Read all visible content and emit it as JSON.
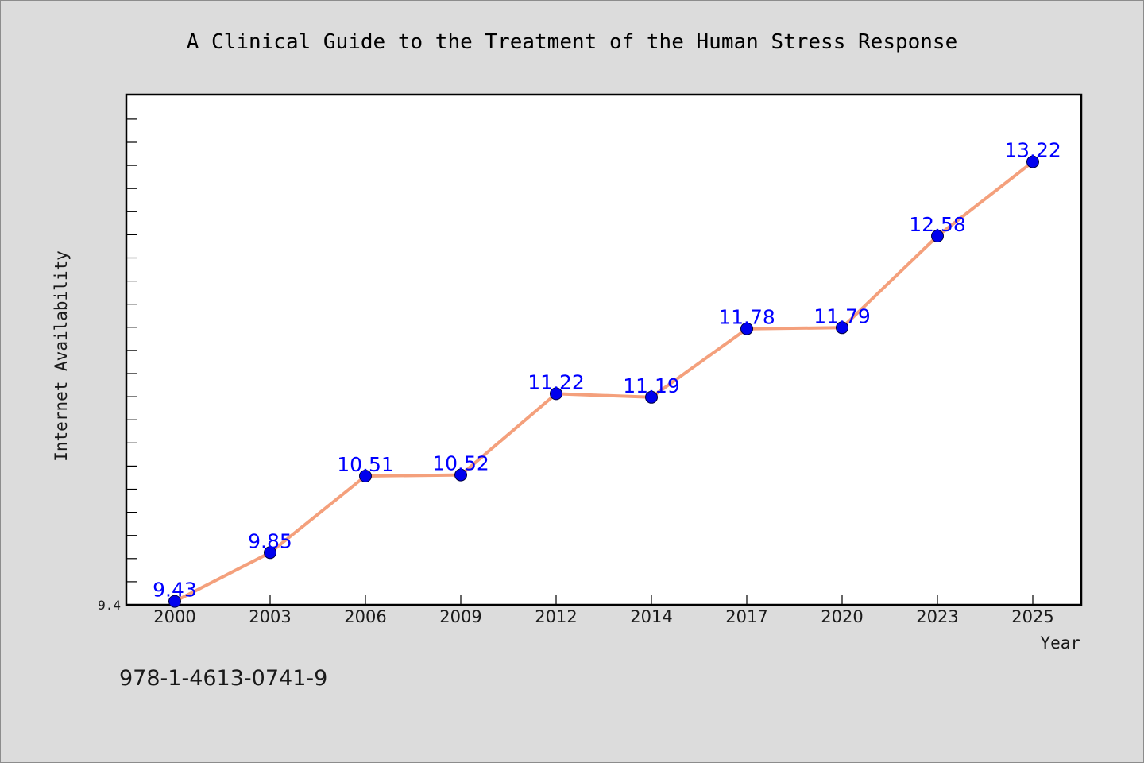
{
  "chart_data": {
    "type": "line",
    "title": "A Clinical Guide to the Treatment of the Human Stress Response",
    "xlabel": "Year",
    "ylabel": "Internet Availability",
    "categories": [
      "2000",
      "2003",
      "2006",
      "2009",
      "2012",
      "2014",
      "2017",
      "2020",
      "2023",
      "2025"
    ],
    "series": [
      {
        "values": [
          9.43,
          9.85,
          10.51,
          10.52,
          11.22,
          11.19,
          11.78,
          11.79,
          12.58,
          13.22
        ]
      }
    ],
    "data_labels": [
      "9.43",
      "9.85",
      "10.51",
      "10.52",
      "11.22",
      "11.19",
      "11.78",
      "11.79",
      "12.58",
      "13.22"
    ],
    "ylim": [
      9.4,
      13.8
    ],
    "yticks_labeled": [
      "9.4"
    ],
    "grid": false,
    "line_color": "#f4a07c",
    "marker_color": "#0000ee",
    "label_color": "#0000ff"
  },
  "footer": {
    "isbn": "978-1-4613-0741-9"
  },
  "colors": {
    "background": "#dcdcdc",
    "plot_background": "#ffffff"
  }
}
